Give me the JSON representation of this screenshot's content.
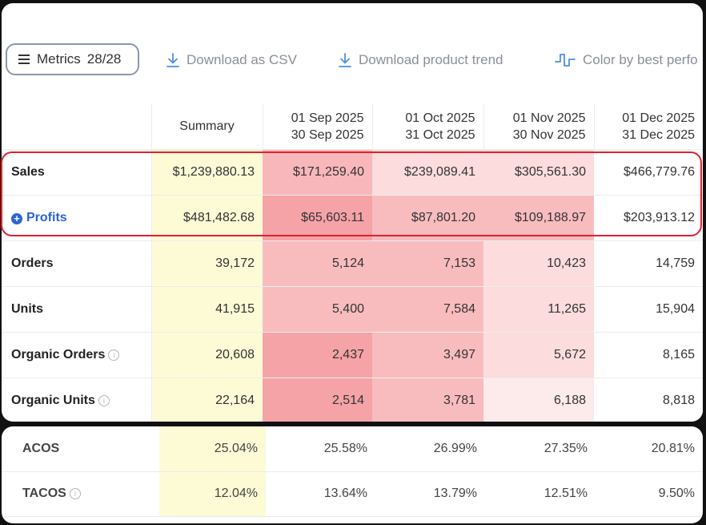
{
  "toolbar": {
    "metrics_label": "Metrics",
    "metrics_count": "28/28",
    "download_csv": "Download as CSV",
    "download_trend": "Download product trend",
    "color_by": "Color by best perfo"
  },
  "table": {
    "headers": [
      {
        "line1": "Summary",
        "line2": ""
      },
      {
        "line1": "01 Sep 2025",
        "line2": "30 Sep 2025"
      },
      {
        "line1": "01 Oct 2025",
        "line2": "31 Oct 2025"
      },
      {
        "line1": "01 Nov 2025",
        "line2": "30 Nov 2025"
      },
      {
        "line1": "01 Dec 2025",
        "line2": "31 Dec 2025"
      }
    ],
    "rows": [
      {
        "label": "Sales",
        "values": [
          "$1,239,880.13",
          "$171,259.40",
          "$239,089.41",
          "$305,561.30",
          "$466,779.76"
        ]
      },
      {
        "label": "Profits",
        "values": [
          "$481,482.68",
          "$65,603.11",
          "$87,801.20",
          "$109,188.97",
          "$203,913.12"
        ]
      },
      {
        "label": "Orders",
        "values": [
          "39,172",
          "5,124",
          "7,153",
          "10,423",
          "14,759"
        ]
      },
      {
        "label": "Units",
        "values": [
          "41,915",
          "5,400",
          "7,584",
          "11,265",
          "15,904"
        ]
      },
      {
        "label": "Organic Orders",
        "values": [
          "20,608",
          "2,437",
          "3,497",
          "5,672",
          "8,165"
        ]
      },
      {
        "label": "Organic Units",
        "values": [
          "22,164",
          "2,514",
          "3,781",
          "6,188",
          "8,818"
        ]
      }
    ]
  },
  "bottom": {
    "rows": [
      {
        "label": "ACOS",
        "values": [
          "25.04%",
          "25.58%",
          "26.99%",
          "27.35%",
          "20.81%"
        ]
      },
      {
        "label": "TACOS",
        "values": [
          "12.04%",
          "13.64%",
          "13.79%",
          "12.51%",
          "9.50%"
        ]
      }
    ]
  },
  "colors": {
    "highlight_border": "#e0222e",
    "summary_bg": "#fdfbd6",
    "link_blue": "#2a63d6",
    "heat_strong": "#f5a3a7",
    "heat_mid": "#f8bcbf",
    "heat_light": "#fcdcdd",
    "heat_none": "#ffffff"
  },
  "heatmap": [
    [
      "#f8b8bb",
      "#fcdcdd",
      "#fcdcdd",
      "#ffffff"
    ],
    [
      "#f5a3a7",
      "#f8bcbf",
      "#f8bcbf",
      "#ffffff"
    ],
    [
      "#f8bcbf",
      "#f8bcbf",
      "#fcdcdd",
      "#ffffff"
    ],
    [
      "#f8bcbf",
      "#f8bcbf",
      "#fcdcdd",
      "#ffffff"
    ],
    [
      "#f5a3a7",
      "#f8bcbf",
      "#fcdcdd",
      "#ffffff"
    ],
    [
      "#f5a3a7",
      "#f8bcbf",
      "#fdeaea",
      "#ffffff"
    ]
  ]
}
